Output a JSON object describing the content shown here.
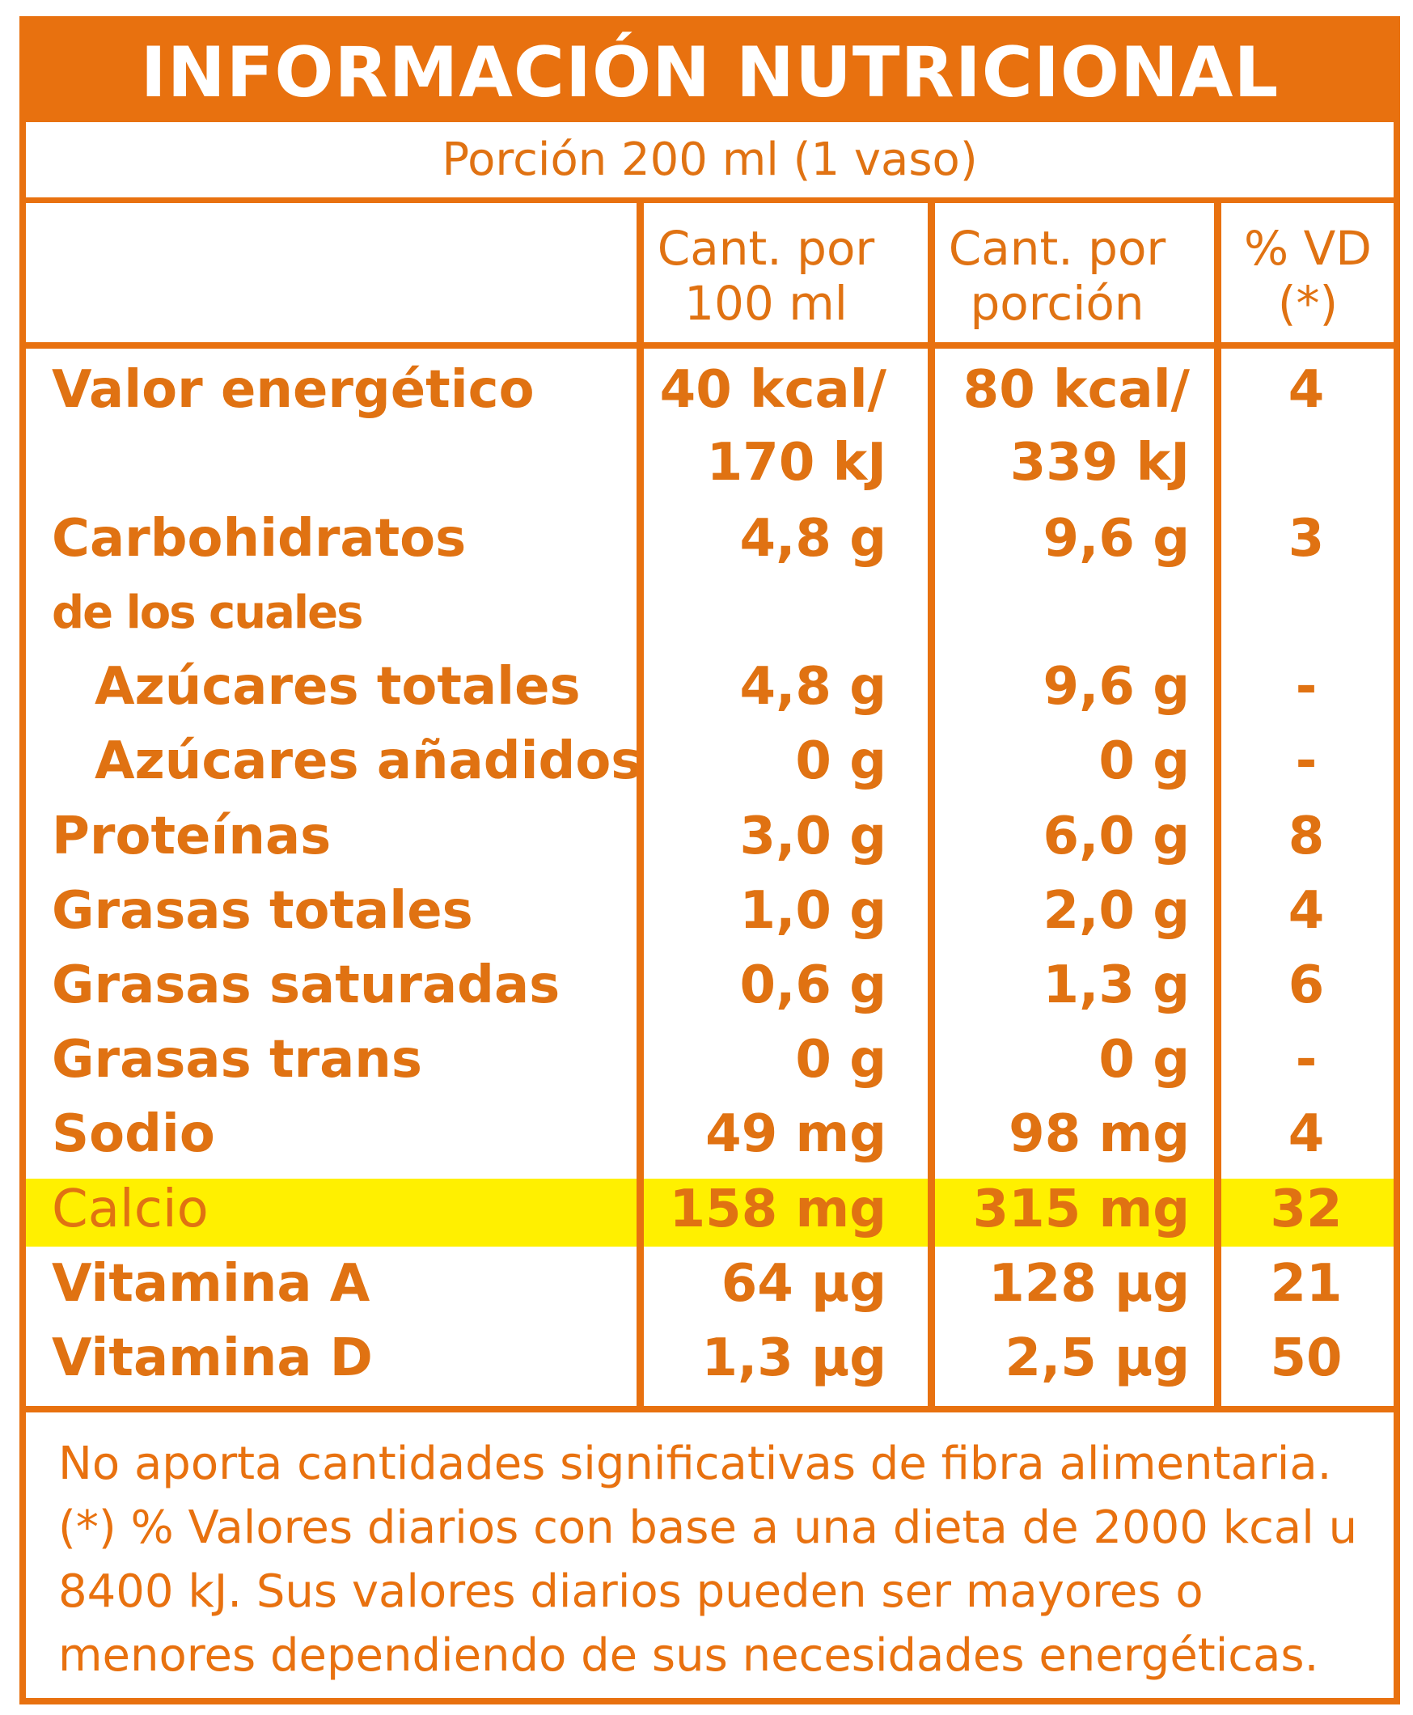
{
  "title": "INFORMACIÓN NUTRICIONAL",
  "portion": "Porción 200 ml (1 vaso)",
  "headers": {
    "per100": [
      "Cant. por",
      "100 ml"
    ],
    "perPortion": [
      "Cant. por",
      "porción"
    ],
    "vd": [
      "% VD",
      "(*)"
    ]
  },
  "rows": [
    {
      "label": "Valor energético",
      "per100": "40 kcal/",
      "perPortion": "80 kcal/",
      "vd": "4"
    },
    {
      "label": "",
      "per100": "170 kJ",
      "perPortion": "339 kJ",
      "vd": ""
    },
    {
      "label": "Carbohidratos",
      "per100": "4,8 g",
      "perPortion": "9,6 g",
      "vd": "3"
    },
    {
      "label": "de los cuales",
      "per100": "",
      "perPortion": "",
      "vd": ""
    },
    {
      "label": "Azúcares totales",
      "per100": "4,8 g",
      "perPortion": "9,6 g",
      "vd": "-"
    },
    {
      "label": "Azúcares añadidos",
      "per100": "0 g",
      "perPortion": "0 g",
      "vd": "-"
    },
    {
      "label": "Proteínas",
      "per100": "3,0 g",
      "perPortion": "6,0 g",
      "vd": "8"
    },
    {
      "label": "Grasas totales",
      "per100": "1,0 g",
      "perPortion": "2,0 g",
      "vd": "4"
    },
    {
      "label": "Grasas saturadas",
      "per100": "0,6 g",
      "perPortion": "1,3 g",
      "vd": "6"
    },
    {
      "label": "Grasas trans",
      "per100": "0 g",
      "perPortion": "0 g",
      "vd": "-"
    },
    {
      "label": "Sodio",
      "per100": "49 mg",
      "perPortion": "98 mg",
      "vd": "4"
    },
    {
      "label": "Calcio",
      "per100": "158 mg",
      "perPortion": "315 mg",
      "vd": "32"
    },
    {
      "label": "Vitamina A",
      "per100": "64 µg",
      "perPortion": "128 µg",
      "vd": "21"
    },
    {
      "label": "Vitamina D",
      "per100": "1,3 µg",
      "perPortion": "2,5 µg",
      "vd": "50"
    }
  ],
  "highlight_color": "#fff000",
  "accent_color": "#e8710f",
  "footnote": [
    "No aporta cantidades significativas de fibra alimentaria.",
    "(*) % Valores diarios con base a una dieta de 2000 kcal u",
    "8400 kJ. Sus valores diarios pueden ser mayores o",
    "menores dependiendo de sus necesidades energéticas."
  ]
}
